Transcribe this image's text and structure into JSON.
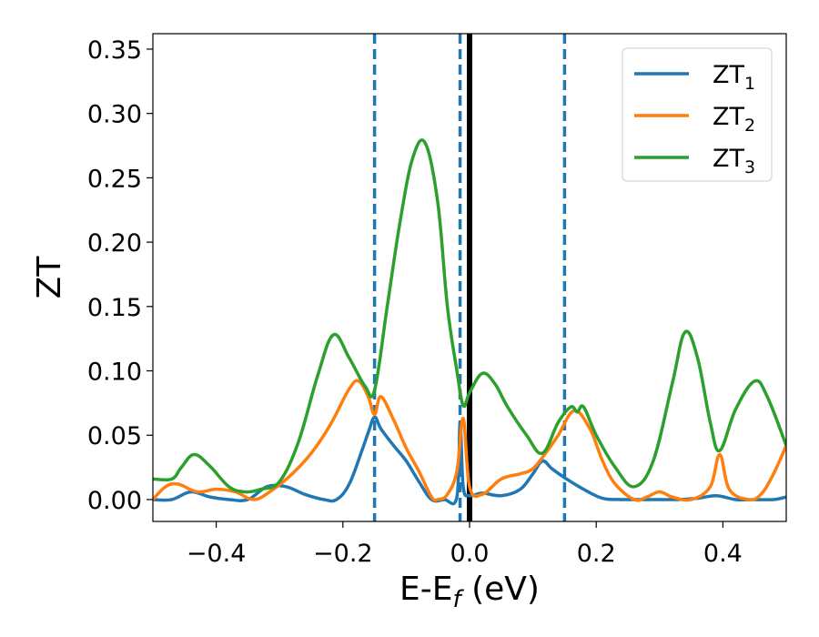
{
  "chart_data": {
    "type": "line",
    "xlabel": "E-E",
    "xlabel_sub": "f",
    "xlabel_unit": " (eV)",
    "ylabel": "ZT",
    "xlim": [
      -0.5,
      0.5
    ],
    "ylim": [
      -0.017,
      0.362
    ],
    "xticks": [
      -0.4,
      -0.2,
      0.0,
      0.2,
      0.4
    ],
    "xtick_labels": [
      "−0.4",
      "−0.2",
      "0.0",
      "0.2",
      "0.4"
    ],
    "yticks": [
      0.0,
      0.05,
      0.1,
      0.15,
      0.2,
      0.25,
      0.3,
      0.35
    ],
    "ytick_labels": [
      "0.00",
      "0.05",
      "0.10",
      "0.15",
      "0.20",
      "0.25",
      "0.30",
      "0.35"
    ],
    "grid": false,
    "legend_position": "top-right",
    "vertical_lines": [
      {
        "x": -0.15,
        "style": "dashed",
        "color": "#1f77b4"
      },
      {
        "x": -0.015,
        "style": "dashed",
        "color": "#1f77b4"
      },
      {
        "x": 0.15,
        "style": "dashed",
        "color": "#1f77b4"
      },
      {
        "x": 0.0,
        "style": "solid",
        "color": "#000000"
      }
    ],
    "series": [
      {
        "name": "ZT",
        "name_sub": "1",
        "color": "#1f77b4",
        "x": [
          -0.5,
          -0.47,
          -0.44,
          -0.41,
          -0.38,
          -0.35,
          -0.32,
          -0.29,
          -0.26,
          -0.23,
          -0.21,
          -0.19,
          -0.17,
          -0.16,
          -0.15,
          -0.14,
          -0.12,
          -0.1,
          -0.08,
          -0.06,
          -0.04,
          -0.02,
          -0.015,
          -0.01,
          0.0,
          0.02,
          0.05,
          0.08,
          0.1,
          0.115,
          0.13,
          0.15,
          0.18,
          0.21,
          0.24,
          0.27,
          0.3,
          0.33,
          0.36,
          0.39,
          0.42,
          0.45,
          0.48,
          0.5
        ],
        "y": [
          0.0,
          0.0,
          0.006,
          0.002,
          0.0,
          0.0,
          0.01,
          0.01,
          0.004,
          0.0,
          0.0,
          0.012,
          0.038,
          0.052,
          0.064,
          0.055,
          0.042,
          0.03,
          0.014,
          0.0,
          0.0,
          0.002,
          0.06,
          0.01,
          0.003,
          0.005,
          0.003,
          0.008,
          0.02,
          0.03,
          0.024,
          0.017,
          0.008,
          0.001,
          0.0,
          0.0,
          0.0,
          0.0,
          0.001,
          0.003,
          0.0,
          0.0,
          0.0,
          0.002
        ]
      },
      {
        "name": "ZT",
        "name_sub": "2",
        "color": "#ff7f0e",
        "x": [
          -0.5,
          -0.48,
          -0.46,
          -0.43,
          -0.4,
          -0.37,
          -0.34,
          -0.31,
          -0.28,
          -0.25,
          -0.22,
          -0.19,
          -0.175,
          -0.16,
          -0.15,
          -0.14,
          -0.12,
          -0.1,
          -0.08,
          -0.06,
          -0.05,
          -0.035,
          -0.02,
          -0.01,
          0.0,
          0.02,
          0.05,
          0.08,
          0.1,
          0.12,
          0.14,
          0.165,
          0.19,
          0.21,
          0.23,
          0.26,
          0.28,
          0.3,
          0.32,
          0.35,
          0.38,
          0.395,
          0.41,
          0.44,
          0.46,
          0.48,
          0.5
        ],
        "y": [
          0.0,
          0.01,
          0.012,
          0.006,
          0.008,
          0.006,
          0.0,
          0.008,
          0.02,
          0.036,
          0.058,
          0.086,
          0.092,
          0.08,
          0.066,
          0.08,
          0.062,
          0.04,
          0.022,
          0.002,
          0.0,
          0.004,
          0.022,
          0.063,
          0.01,
          0.004,
          0.016,
          0.02,
          0.024,
          0.036,
          0.05,
          0.069,
          0.055,
          0.03,
          0.012,
          0.0,
          0.002,
          0.006,
          0.002,
          0.0,
          0.01,
          0.035,
          0.008,
          0.0,
          0.004,
          0.02,
          0.042
        ]
      },
      {
        "name": "ZT",
        "name_sub": "3",
        "color": "#2ca02c",
        "x": [
          -0.5,
          -0.47,
          -0.455,
          -0.435,
          -0.41,
          -0.38,
          -0.355,
          -0.33,
          -0.3,
          -0.27,
          -0.24,
          -0.215,
          -0.19,
          -0.165,
          -0.15,
          -0.13,
          -0.11,
          -0.09,
          -0.07,
          -0.05,
          -0.035,
          -0.02,
          -0.01,
          0.0,
          0.02,
          0.04,
          0.06,
          0.09,
          0.115,
          0.14,
          0.16,
          0.17,
          0.18,
          0.2,
          0.23,
          0.26,
          0.29,
          0.32,
          0.34,
          0.36,
          0.38,
          0.395,
          0.42,
          0.45,
          0.47,
          0.5
        ],
        "y": [
          0.016,
          0.016,
          0.025,
          0.035,
          0.026,
          0.01,
          0.006,
          0.008,
          0.014,
          0.045,
          0.096,
          0.128,
          0.11,
          0.088,
          0.085,
          0.15,
          0.215,
          0.265,
          0.277,
          0.23,
          0.15,
          0.1,
          0.073,
          0.083,
          0.098,
          0.09,
          0.072,
          0.05,
          0.036,
          0.06,
          0.072,
          0.068,
          0.072,
          0.05,
          0.025,
          0.01,
          0.03,
          0.09,
          0.13,
          0.11,
          0.06,
          0.038,
          0.07,
          0.092,
          0.08,
          0.042
        ]
      }
    ]
  }
}
